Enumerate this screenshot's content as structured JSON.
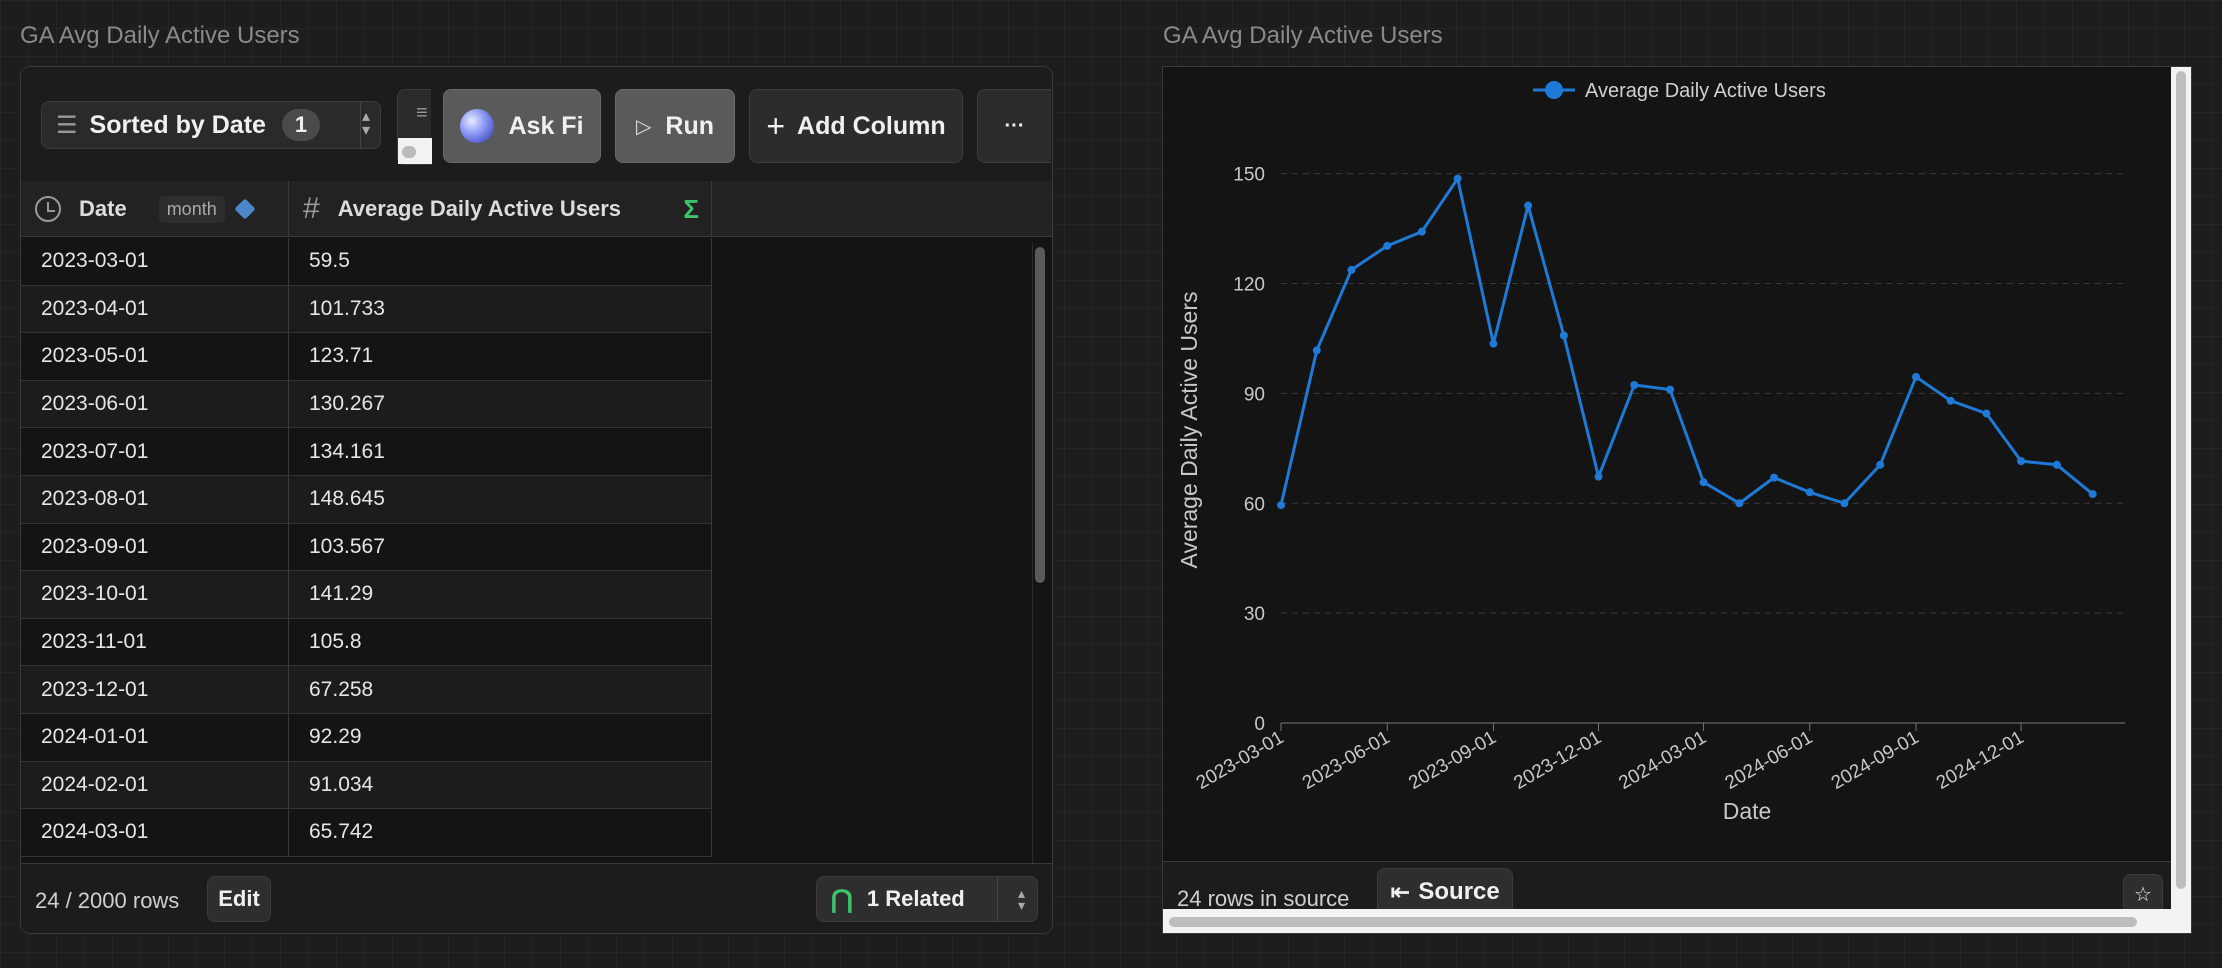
{
  "left_panel": {
    "title": "GA Avg Daily Active Users",
    "toolbar": {
      "sort_label": "Sorted by Date",
      "sort_count": "1",
      "ask_fi_label": "Ask Fi",
      "run_label": "Run",
      "add_column_label": "Add Column",
      "more_label": "···"
    },
    "columns": {
      "date_label": "Date",
      "date_granularity": "month",
      "value_label": "Average Daily Active Users"
    },
    "rows": [
      {
        "date": "2023-03-01",
        "value": "59.5"
      },
      {
        "date": "2023-04-01",
        "value": "101.733"
      },
      {
        "date": "2023-05-01",
        "value": "123.71"
      },
      {
        "date": "2023-06-01",
        "value": "130.267"
      },
      {
        "date": "2023-07-01",
        "value": "134.161"
      },
      {
        "date": "2023-08-01",
        "value": "148.645"
      },
      {
        "date": "2023-09-01",
        "value": "103.567"
      },
      {
        "date": "2023-10-01",
        "value": "141.29"
      },
      {
        "date": "2023-11-01",
        "value": "105.8"
      },
      {
        "date": "2023-12-01",
        "value": "67.258"
      },
      {
        "date": "2024-01-01",
        "value": "92.29"
      },
      {
        "date": "2024-02-01",
        "value": "91.034"
      },
      {
        "date": "2024-03-01",
        "value": "65.742"
      }
    ],
    "footer": {
      "row_count": "24 / 2000 rows",
      "edit_label": "Edit",
      "related_label": "1 Related"
    }
  },
  "right_panel": {
    "title": "GA Avg Daily Active Users",
    "footer": {
      "rows_in_source": "24 rows in source",
      "source_label": "Source"
    }
  },
  "chart_data": {
    "type": "line",
    "title": "",
    "xlabel": "Date",
    "ylabel": "Average Daily Active Users",
    "ylim": [
      0,
      160
    ],
    "yticks": [
      0,
      30,
      60,
      90,
      120,
      150
    ],
    "xticks": [
      "2023-03-01",
      "2023-06-01",
      "2023-09-01",
      "2023-12-01",
      "2024-03-01",
      "2024-06-01",
      "2024-09-01",
      "2024-12-01"
    ],
    "grid": true,
    "legend_position": "top-center",
    "color": "#1e7ad6",
    "x": [
      "2023-03-01",
      "2023-04-01",
      "2023-05-01",
      "2023-06-01",
      "2023-07-01",
      "2023-08-01",
      "2023-09-01",
      "2023-10-01",
      "2023-11-01",
      "2023-12-01",
      "2024-01-01",
      "2024-02-01",
      "2024-03-01",
      "2024-04-01",
      "2024-05-01",
      "2024-06-01",
      "2024-07-01",
      "2024-08-01",
      "2024-09-01",
      "2024-10-01",
      "2024-11-01",
      "2024-12-01",
      "2025-01-01",
      "2025-02-01"
    ],
    "series": [
      {
        "name": "Average Daily Active Users",
        "values": [
          59.5,
          101.733,
          123.71,
          130.267,
          134.161,
          148.645,
          103.567,
          141.29,
          105.8,
          67.258,
          92.29,
          91.034,
          65.742,
          60,
          67,
          63,
          60,
          70.5,
          94.5,
          88,
          84.5,
          71.5,
          70.5,
          62.5
        ]
      }
    ]
  }
}
